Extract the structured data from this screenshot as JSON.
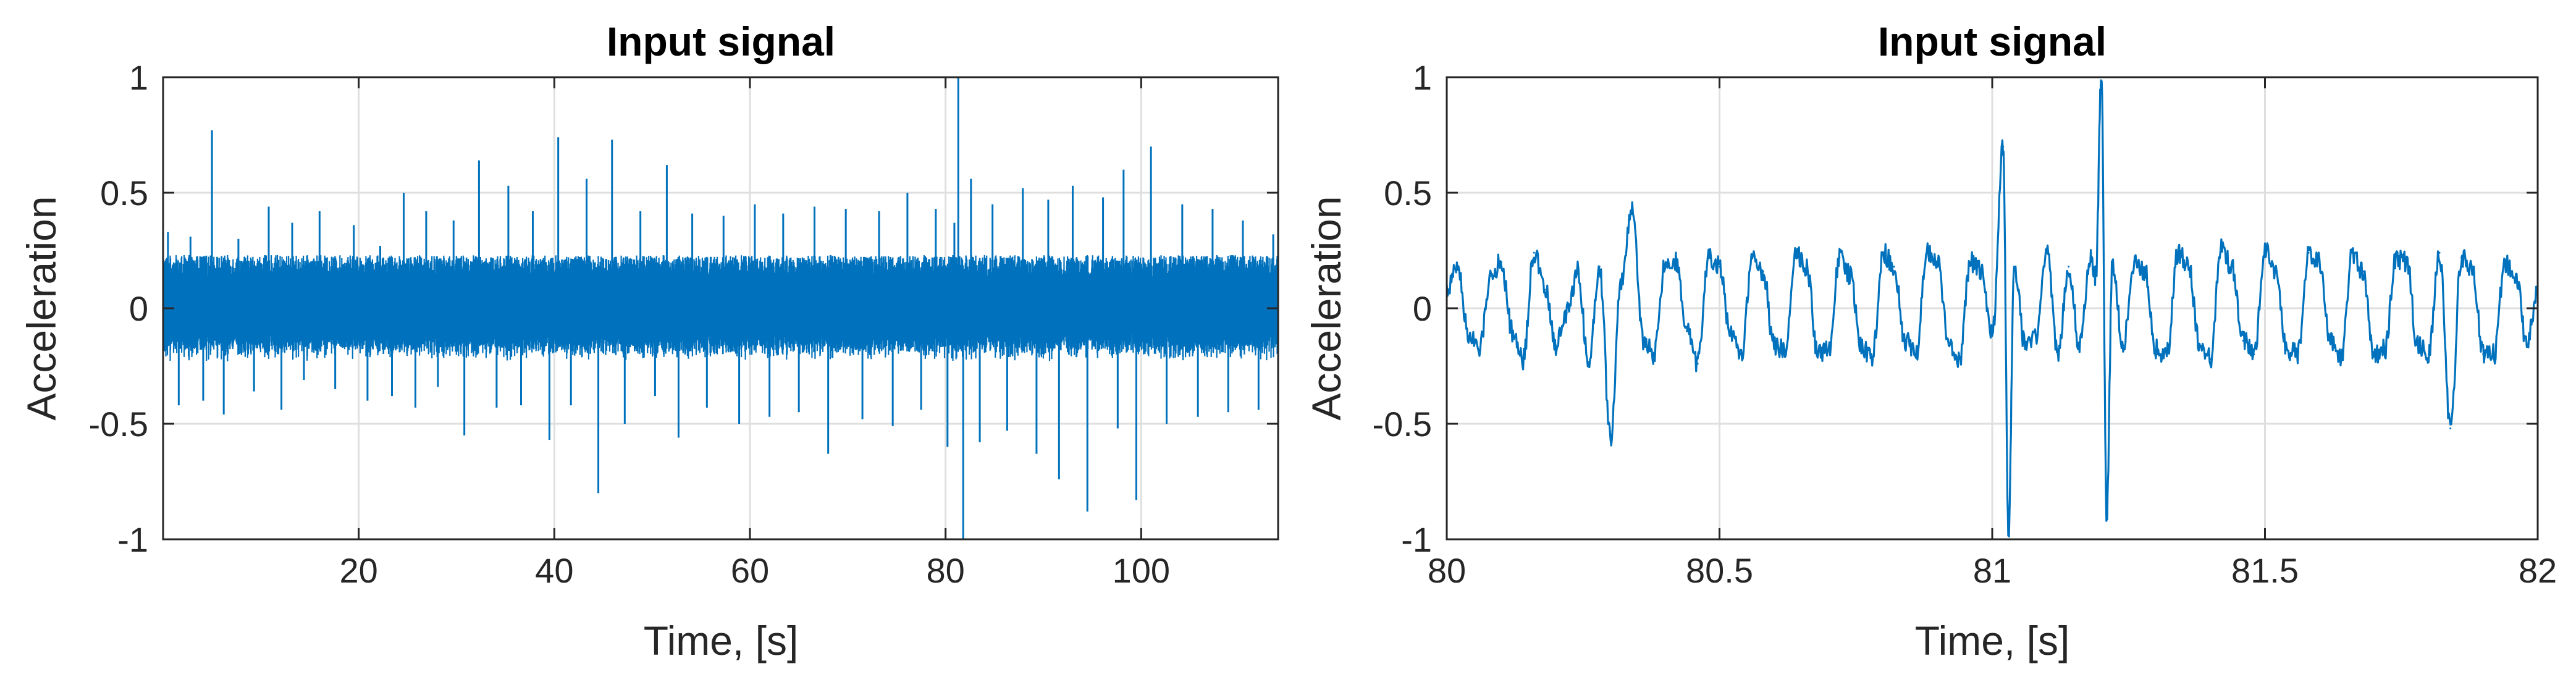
{
  "chart_data": [
    {
      "type": "line",
      "title": "Input signal",
      "xlabel": "Time, [s]",
      "ylabel": "Acceleration",
      "xlim": [
        0,
        114
      ],
      "ylim": [
        -1,
        1
      ],
      "xticks": [
        20,
        40,
        60,
        80,
        100
      ],
      "xtick_labels": [
        "20",
        "40",
        "60",
        "80",
        "100"
      ],
      "yticks": [
        -1,
        -0.5,
        0,
        0.5,
        1
      ],
      "ytick_labels": [
        "-1",
        "-0.5",
        "0",
        "0.5",
        "1"
      ],
      "grid": true,
      "color": "#0072BD",
      "background_band": 0.23,
      "series": [
        {
          "x": [
            0.5,
            1.6,
            2.8,
            4.1,
            5.0,
            6.2,
            7.7,
            9.3,
            10.8,
            12.1,
            13.2,
            14.4,
            16.0,
            17.6,
            19.5,
            20.9,
            22.2,
            23.4,
            24.6,
            25.8,
            26.9,
            28.1,
            29.7,
            30.8,
            32.3,
            34.1,
            35.3,
            36.6,
            37.8,
            39.5,
            40.4,
            41.7,
            43.3,
            44.5,
            45.9,
            47.2,
            48.8,
            50.3,
            51.5,
            52.7,
            54.1,
            55.6,
            57.3,
            58.9,
            60.5,
            62.0,
            63.4,
            65.0,
            66.6,
            68.0,
            69.8,
            71.5,
            73.2,
            74.6,
            76.1,
            77.5,
            79.0,
            80.2,
            80.9,
            81.3,
            81.8,
            82.6,
            83.5,
            84.8,
            86.3,
            87.9,
            89.3,
            90.5,
            91.6,
            93.0,
            94.5,
            96.1,
            97.6,
            98.2,
            99.5,
            101.0,
            102.6,
            104.2,
            105.8,
            107.3,
            108.9,
            110.4,
            112.0,
            113.5
          ],
          "y": [
            0.33,
            -0.42,
            0.31,
            -0.4,
            0.77,
            -0.46,
            0.3,
            -0.36,
            0.44,
            -0.44,
            0.37,
            -0.31,
            0.42,
            -0.35,
            0.36,
            -0.4,
            0.27,
            -0.38,
            0.5,
            -0.43,
            0.42,
            -0.34,
            0.38,
            -0.55,
            0.64,
            -0.43,
            0.53,
            -0.42,
            0.42,
            -0.57,
            0.74,
            -0.42,
            0.56,
            -0.8,
            0.73,
            -0.5,
            0.42,
            -0.38,
            0.62,
            -0.56,
            0.41,
            -0.43,
            0.4,
            -0.5,
            0.45,
            -0.47,
            0.41,
            -0.45,
            0.44,
            -0.63,
            0.43,
            -0.48,
            0.42,
            -0.51,
            0.5,
            -0.44,
            0.43,
            -0.6,
            0.37,
            1.0,
            -1.0,
            0.56,
            -0.58,
            0.45,
            -0.53,
            0.52,
            -0.63,
            0.47,
            -0.74,
            0.53,
            -0.88,
            0.48,
            -0.52,
            0.6,
            -0.83,
            0.7,
            -0.5,
            0.45,
            -0.47,
            0.43,
            -0.45,
            0.38,
            -0.44,
            0.32
          ]
        }
      ]
    },
    {
      "type": "line",
      "title": "Input signal",
      "xlabel": "Time, [s]",
      "ylabel": "Acceleration",
      "xlim": [
        80,
        82
      ],
      "ylim": [
        -1,
        1
      ],
      "xticks": [
        80,
        80.5,
        81,
        81.5,
        82
      ],
      "xtick_labels": [
        "80",
        "80.5",
        "81",
        "81.5",
        "82"
      ],
      "yticks": [
        -1,
        -0.5,
        0,
        0.5,
        1
      ],
      "ytick_labels": [
        "-1",
        "-0.5",
        "0",
        "0.5",
        "1"
      ],
      "grid": true,
      "color": "#0072BD",
      "series": [
        {
          "x": [
            80.0,
            80.02,
            80.04,
            80.06,
            80.08,
            80.1,
            80.12,
            80.14,
            80.16,
            80.18,
            80.2,
            80.22,
            80.24,
            80.26,
            80.28,
            80.3,
            80.32,
            80.34,
            80.36,
            80.38,
            80.4,
            80.42,
            80.44,
            80.46,
            80.48,
            80.5,
            80.52,
            80.54,
            80.56,
            80.58,
            80.6,
            80.62,
            80.64,
            80.66,
            80.68,
            80.7,
            80.72,
            80.74,
            80.76,
            80.78,
            80.8,
            80.82,
            80.84,
            80.86,
            80.88,
            80.9,
            80.92,
            80.94,
            80.96,
            80.98,
            81.0,
            81.02,
            81.03,
            81.04,
            81.06,
            81.08,
            81.1,
            81.12,
            81.14,
            81.16,
            81.18,
            81.19,
            81.2,
            81.21,
            81.22,
            81.24,
            81.26,
            81.28,
            81.3,
            81.32,
            81.34,
            81.36,
            81.38,
            81.4,
            81.42,
            81.44,
            81.46,
            81.48,
            81.5,
            81.52,
            81.54,
            81.56,
            81.58,
            81.6,
            81.62,
            81.64,
            81.66,
            81.68,
            81.7,
            81.72,
            81.74,
            81.76,
            81.78,
            81.8,
            81.82,
            81.84,
            81.86,
            81.88,
            81.9,
            81.92,
            81.94,
            81.96,
            81.98,
            82.0
          ],
          "y": [
            0.08,
            0.18,
            -0.12,
            -0.18,
            0.14,
            0.2,
            -0.1,
            -0.22,
            0.24,
            0.08,
            -0.16,
            -0.02,
            0.16,
            -0.24,
            0.18,
            -0.56,
            0.12,
            0.44,
            -0.14,
            -0.2,
            0.18,
            0.2,
            -0.1,
            -0.24,
            0.22,
            0.18,
            -0.12,
            -0.2,
            0.22,
            0.16,
            -0.16,
            -0.18,
            0.24,
            0.18,
            -0.2,
            -0.18,
            0.22,
            0.14,
            -0.16,
            -0.22,
            0.24,
            0.18,
            -0.14,
            -0.2,
            0.24,
            0.2,
            -0.16,
            -0.22,
            0.2,
            0.16,
            -0.12,
            0.7,
            -1.0,
            0.18,
            -0.16,
            -0.12,
            0.26,
            -0.2,
            0.18,
            -0.16,
            0.22,
            0.14,
            1.0,
            -0.9,
            0.18,
            -0.16,
            0.2,
            0.16,
            -0.18,
            -0.2,
            0.24,
            0.18,
            -0.16,
            -0.22,
            0.26,
            0.18,
            -0.14,
            -0.2,
            0.26,
            0.16,
            -0.18,
            -0.2,
            0.24,
            0.2,
            -0.14,
            -0.22,
            0.24,
            0.16,
            -0.2,
            -0.18,
            0.22,
            0.2,
            -0.16,
            -0.2,
            0.24,
            -0.52,
            0.22,
            0.18,
            -0.2,
            -0.2,
            0.2,
            0.14,
            -0.16,
            0.08
          ]
        }
      ]
    }
  ]
}
